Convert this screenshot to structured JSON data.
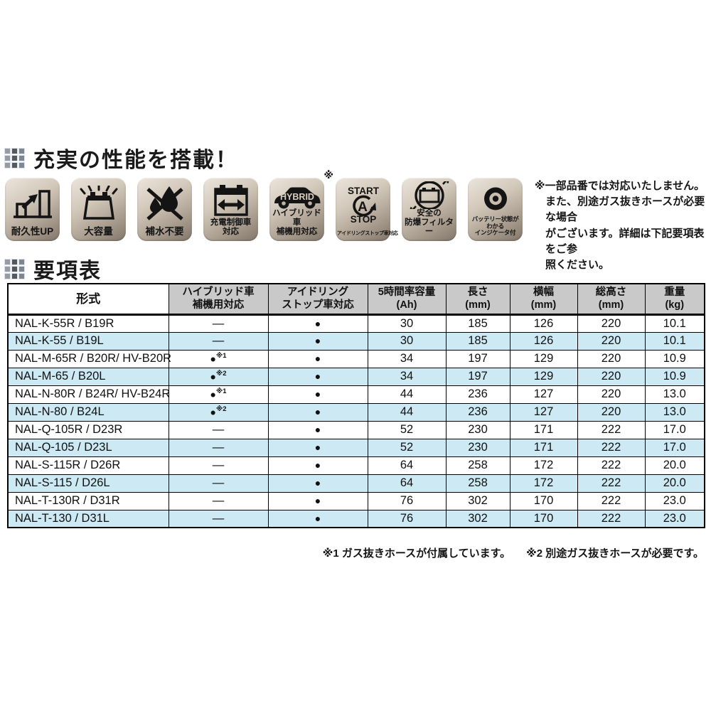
{
  "colors": {
    "row_alt": "#cde9f4",
    "header_bg": "#c9c9c9",
    "badge_ink": "#141414"
  },
  "section_performance": {
    "title": "充実の性能を搭載！"
  },
  "badges": [
    {
      "id": "durability",
      "icon": "bar-chart-up",
      "label_lines": [
        "耐久性UP"
      ]
    },
    {
      "id": "capacity",
      "icon": "battery-rays",
      "label_lines": [
        "大容量"
      ]
    },
    {
      "id": "no-refill",
      "icon": "water-drop-crossed",
      "label_lines": [
        "補水不要"
      ]
    },
    {
      "id": "charge-control",
      "icon": "battery-arrows",
      "label_lines": [
        "充電制御車",
        "対応"
      ]
    },
    {
      "id": "hybrid",
      "icon": "hybrid-car",
      "icon_text": "HYBRID",
      "label_lines": [
        "ハイブリッド車",
        "補機用対応"
      ],
      "asterisk": "※"
    },
    {
      "id": "idling-stop",
      "icon": "start-stop-circle",
      "icon_text_start": "START",
      "icon_text_letter": "A",
      "icon_text_stop": "STOP",
      "label_lines": [
        "アイドリングストップ車対応"
      ]
    },
    {
      "id": "explosion-filter",
      "icon": "explosion-proof-battery",
      "label_lines": [
        "安全の",
        "防爆フィルター"
      ]
    },
    {
      "id": "indicator",
      "icon": "battery-indicator",
      "label_lines": [
        "バッテリー状態がわかる",
        "インジケータ付"
      ]
    }
  ],
  "note": {
    "lines": [
      "※一部品番では対応いたしません。",
      "また、別途ガス抜きホースが必要な場合",
      "がございます。詳細は下記要項表をご参",
      "照ください。"
    ]
  },
  "section_spec": {
    "title": "要項表"
  },
  "table": {
    "headers": [
      {
        "lines": [
          "形式"
        ]
      },
      {
        "lines": [
          "ハイブリッド車",
          "補機用対応"
        ]
      },
      {
        "lines": [
          "アイドリング",
          "ストップ車対応"
        ]
      },
      {
        "lines": [
          "5時間率容量",
          "(Ah)"
        ]
      },
      {
        "lines": [
          "長さ",
          "(mm)"
        ]
      },
      {
        "lines": [
          "横幅",
          "(mm)"
        ]
      },
      {
        "lines": [
          "総高さ",
          "(mm)"
        ]
      },
      {
        "lines": [
          "重量",
          "(kg)"
        ]
      }
    ],
    "rows": [
      {
        "model": "NAL-K-55R / B19R",
        "hybrid": "—",
        "hybrid_note": "",
        "idling": "●",
        "capacity_ah": "30",
        "length_mm": "185",
        "width_mm": "126",
        "height_mm": "220",
        "weight_kg": "10.1"
      },
      {
        "model": "NAL-K-55 / B19L",
        "hybrid": "—",
        "hybrid_note": "",
        "idling": "●",
        "capacity_ah": "30",
        "length_mm": "185",
        "width_mm": "126",
        "height_mm": "220",
        "weight_kg": "10.1"
      },
      {
        "model": "NAL-M-65R / B20R/ HV-B20R",
        "hybrid": "●",
        "hybrid_note": "※1",
        "idling": "●",
        "capacity_ah": "34",
        "length_mm": "197",
        "width_mm": "129",
        "height_mm": "220",
        "weight_kg": "10.9"
      },
      {
        "model": "NAL-M-65 / B20L",
        "hybrid": "●",
        "hybrid_note": "※2",
        "idling": "●",
        "capacity_ah": "34",
        "length_mm": "197",
        "width_mm": "129",
        "height_mm": "220",
        "weight_kg": "10.9"
      },
      {
        "model": "NAL-N-80R / B24R/ HV-B24R",
        "hybrid": "●",
        "hybrid_note": "※1",
        "idling": "●",
        "capacity_ah": "44",
        "length_mm": "236",
        "width_mm": "127",
        "height_mm": "220",
        "weight_kg": "13.0"
      },
      {
        "model": "NAL-N-80 / B24L",
        "hybrid": "●",
        "hybrid_note": "※2",
        "idling": "●",
        "capacity_ah": "44",
        "length_mm": "236",
        "width_mm": "127",
        "height_mm": "220",
        "weight_kg": "13.0"
      },
      {
        "model": "NAL-Q-105R / D23R",
        "hybrid": "—",
        "hybrid_note": "",
        "idling": "●",
        "capacity_ah": "52",
        "length_mm": "230",
        "width_mm": "171",
        "height_mm": "222",
        "weight_kg": "17.0"
      },
      {
        "model": "NAL-Q-105 / D23L",
        "hybrid": "—",
        "hybrid_note": "",
        "idling": "●",
        "capacity_ah": "52",
        "length_mm": "230",
        "width_mm": "171",
        "height_mm": "222",
        "weight_kg": "17.0"
      },
      {
        "model": "NAL-S-115R / D26R",
        "hybrid": "—",
        "hybrid_note": "",
        "idling": "●",
        "capacity_ah": "64",
        "length_mm": "258",
        "width_mm": "172",
        "height_mm": "222",
        "weight_kg": "20.0"
      },
      {
        "model": "NAL-S-115 / D26L",
        "hybrid": "—",
        "hybrid_note": "",
        "idling": "●",
        "capacity_ah": "64",
        "length_mm": "258",
        "width_mm": "172",
        "height_mm": "222",
        "weight_kg": "20.0"
      },
      {
        "model": "NAL-T-130R / D31R",
        "hybrid": "—",
        "hybrid_note": "",
        "idling": "●",
        "capacity_ah": "76",
        "length_mm": "302",
        "width_mm": "170",
        "height_mm": "222",
        "weight_kg": "23.0"
      },
      {
        "model": "NAL-T-130 / D31L",
        "hybrid": "—",
        "hybrid_note": "",
        "idling": "●",
        "capacity_ah": "76",
        "length_mm": "302",
        "width_mm": "170",
        "height_mm": "222",
        "weight_kg": "23.0"
      }
    ]
  },
  "footnotes": [
    "※1 ガス抜きホースが付属しています。",
    "※2 別途ガス抜きホースが必要です。"
  ]
}
